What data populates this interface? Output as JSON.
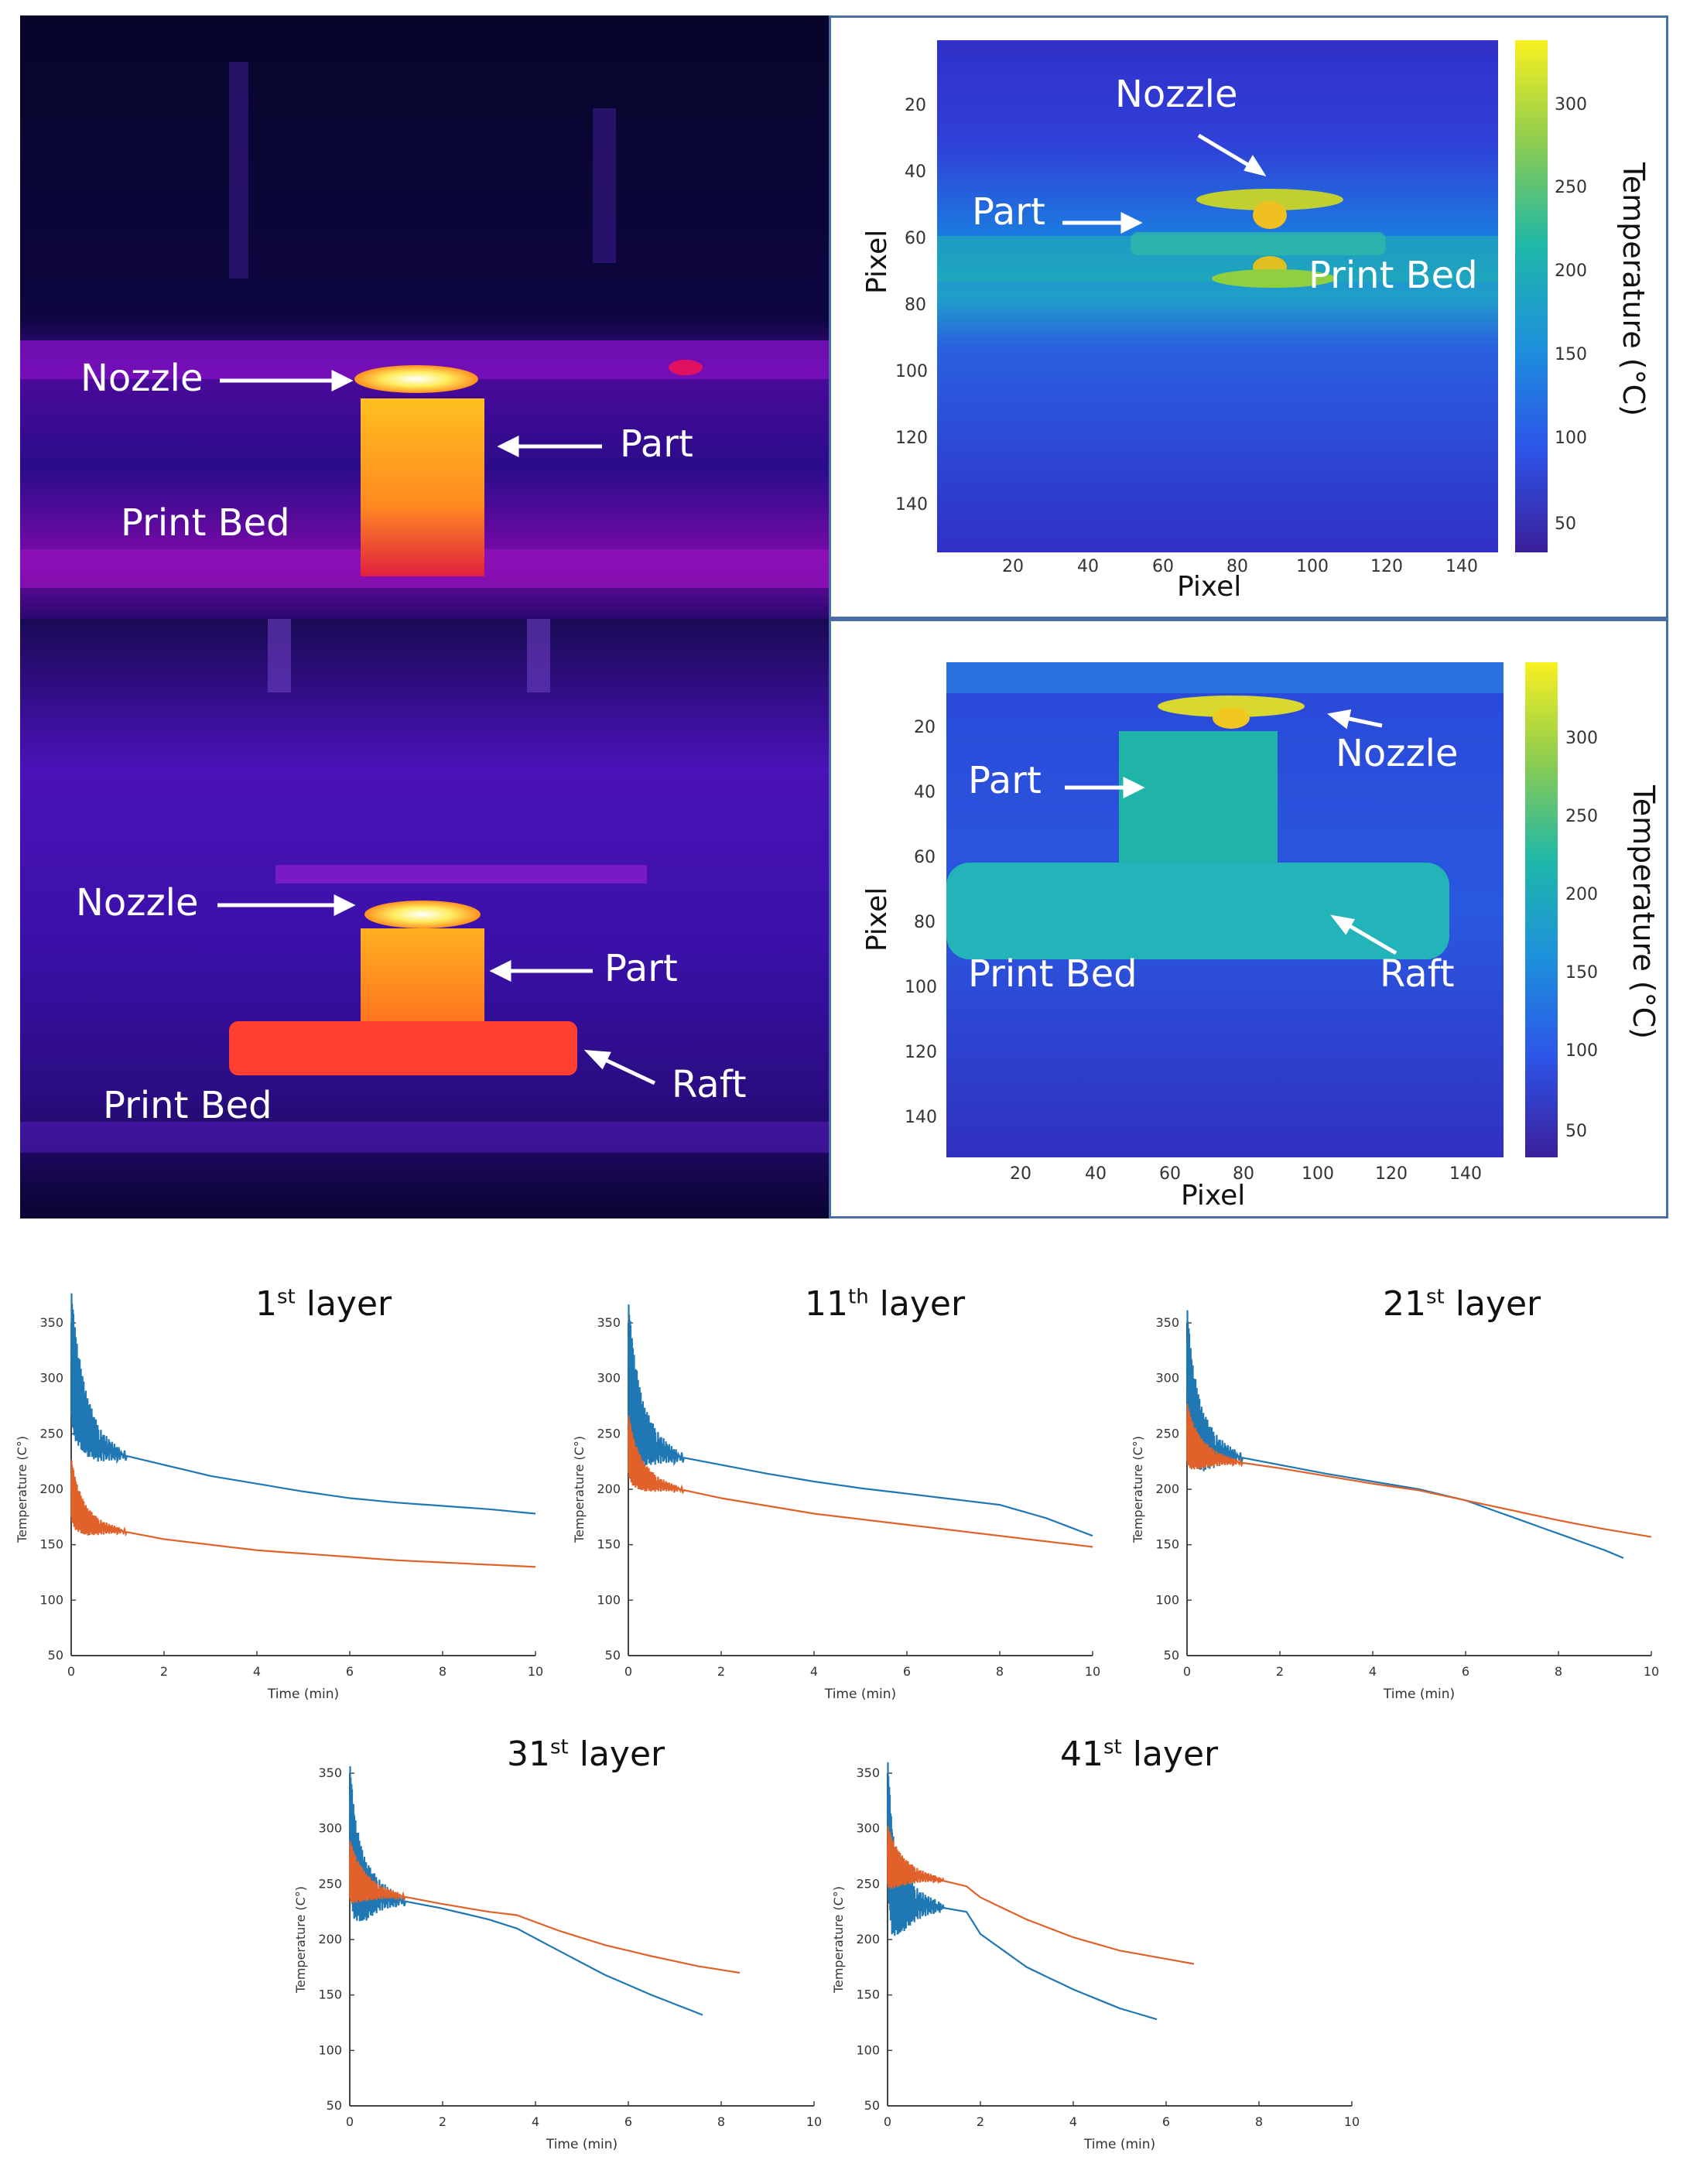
{
  "photo_top": {
    "labels": {
      "nozzle": "Nozzle",
      "part": "Part",
      "print_bed": "Print Bed"
    }
  },
  "photo_bottom": {
    "labels": {
      "nozzle": "Nozzle",
      "part": "Part",
      "raft": "Raft",
      "print_bed": "Print Bed"
    }
  },
  "map_top": {
    "labels": {
      "nozzle": "Nozzle",
      "part": "Part",
      "print_bed": "Print Bed"
    },
    "xlabel": "Pixel",
    "ylabel": "Pixel",
    "xticks": [
      "20",
      "40",
      "60",
      "80",
      "100",
      "120",
      "140"
    ],
    "yticks": [
      "20",
      "40",
      "60",
      "80",
      "100",
      "120",
      "140"
    ],
    "colorbar_label": "Temperature (°C)",
    "colorbar_ticks": [
      "300",
      "250",
      "200",
      "150",
      "100",
      "50"
    ]
  },
  "map_bottom": {
    "labels": {
      "nozzle": "Nozzle",
      "part": "Part",
      "raft": "Raft",
      "print_bed": "Print Bed"
    },
    "xlabel": "Pixel",
    "ylabel": "Pixel",
    "xticks": [
      "20",
      "40",
      "60",
      "80",
      "100",
      "120",
      "140"
    ],
    "yticks": [
      "20",
      "40",
      "60",
      "80",
      "100",
      "120",
      "140"
    ],
    "colorbar_label": "Temperature (°C)",
    "colorbar_ticks": [
      "300",
      "250",
      "200",
      "150",
      "100",
      "50"
    ]
  },
  "colors": {
    "series_a": "#1f77b4",
    "series_b": "#e0622a"
  },
  "chart_data": [
    {
      "type": "line",
      "title_num": "1",
      "title_sup": "st",
      "title_rest": " layer",
      "xlabel": "Time (min)",
      "ylabel": "Temperature (C°)",
      "xlim": [
        0,
        10
      ],
      "ylim": [
        50,
        350
      ],
      "xticks": [
        "0",
        "2",
        "4",
        "6",
        "8",
        "10"
      ],
      "yticks": [
        "50",
        "100",
        "150",
        "200",
        "250",
        "300",
        "350"
      ],
      "series": [
        {
          "name": "series_a",
          "x": [
            0,
            0.1,
            0.3,
            0.6,
            1,
            2,
            3,
            4,
            5,
            6,
            7,
            8,
            9,
            10
          ],
          "y": [
            320,
            290,
            260,
            240,
            232,
            222,
            212,
            205,
            198,
            192,
            188,
            185,
            182,
            178
          ]
        },
        {
          "name": "series_b",
          "x": [
            0,
            0.1,
            0.3,
            0.6,
            1,
            2,
            3,
            4,
            5,
            6,
            7,
            8,
            9,
            10
          ],
          "y": [
            200,
            185,
            172,
            166,
            163,
            155,
            150,
            145,
            142,
            139,
            136,
            134,
            132,
            130
          ]
        }
      ]
    },
    {
      "type": "line",
      "title_num": "11",
      "title_sup": "th",
      "title_rest": " layer",
      "xlabel": "Time (min)",
      "ylabel": "Temperature (C°)",
      "xlim": [
        0,
        10
      ],
      "ylim": [
        50,
        350
      ],
      "xticks": [
        "0",
        "2",
        "4",
        "6",
        "8",
        "10"
      ],
      "yticks": [
        "50",
        "100",
        "150",
        "200",
        "250",
        "300",
        "350"
      ],
      "series": [
        {
          "name": "series_a",
          "x": [
            0,
            0.1,
            0.3,
            0.6,
            1,
            2,
            3,
            4,
            5,
            6,
            7,
            8,
            9,
            10
          ],
          "y": [
            310,
            280,
            250,
            238,
            230,
            222,
            214,
            207,
            201,
            196,
            191,
            186,
            174,
            158
          ]
        },
        {
          "name": "series_b",
          "x": [
            0,
            0.1,
            0.3,
            0.6,
            1,
            2,
            3,
            4,
            5,
            6,
            7,
            8,
            9,
            10
          ],
          "y": [
            240,
            225,
            212,
            205,
            201,
            192,
            185,
            178,
            173,
            168,
            163,
            158,
            153,
            148
          ]
        }
      ]
    },
    {
      "type": "line",
      "title_num": "21",
      "title_sup": "st",
      "title_rest": " layer",
      "xlabel": "Time (min)",
      "ylabel": "Temperature (C°)",
      "xlim": [
        0,
        10
      ],
      "ylim": [
        50,
        350
      ],
      "xticks": [
        "0",
        "2",
        "4",
        "6",
        "8",
        "10"
      ],
      "yticks": [
        "50",
        "100",
        "150",
        "200",
        "250",
        "300",
        "350"
      ],
      "series": [
        {
          "name": "series_a",
          "x": [
            0,
            0.1,
            0.3,
            0.6,
            1,
            2,
            3,
            4,
            5,
            6,
            7,
            8,
            9,
            9.4
          ],
          "y": [
            305,
            270,
            245,
            235,
            230,
            222,
            214,
            207,
            200,
            190,
            175,
            160,
            145,
            138
          ]
        },
        {
          "name": "series_b",
          "x": [
            0,
            0.1,
            0.3,
            0.6,
            1,
            2,
            3,
            4,
            5,
            6,
            7,
            8,
            9,
            10
          ],
          "y": [
            250,
            240,
            232,
            228,
            225,
            219,
            212,
            205,
            199,
            190,
            181,
            172,
            164,
            157
          ]
        }
      ]
    },
    {
      "type": "line",
      "title_num": "31",
      "title_sup": "st",
      "title_rest": " layer",
      "xlabel": "Time (min)",
      "ylabel": "Temperature (C°)",
      "xlim": [
        0,
        10
      ],
      "ylim": [
        50,
        350
      ],
      "xticks": [
        "0",
        "2",
        "4",
        "6",
        "8",
        "10"
      ],
      "yticks": [
        "50",
        "100",
        "150",
        "200",
        "250",
        "300",
        "350"
      ],
      "series": [
        {
          "name": "series_a",
          "x": [
            0,
            0.1,
            0.3,
            0.6,
            1,
            2,
            3,
            3.6,
            4.5,
            5.5,
            6.5,
            7.6
          ],
          "y": [
            300,
            265,
            245,
            240,
            236,
            228,
            218,
            210,
            190,
            168,
            150,
            132
          ]
        },
        {
          "name": "series_b",
          "x": [
            0,
            0.1,
            0.3,
            0.6,
            1,
            2,
            3,
            3.6,
            4.5,
            5.5,
            6.5,
            7.5,
            8.4
          ],
          "y": [
            262,
            255,
            248,
            243,
            240,
            232,
            225,
            222,
            208,
            195,
            185,
            176,
            170
          ]
        }
      ]
    },
    {
      "type": "line",
      "title_num": "41",
      "title_sup": "st",
      "title_rest": " layer",
      "xlabel": "Time (min)",
      "ylabel": "Temperature (C°)",
      "xlim": [
        0,
        10
      ],
      "ylim": [
        50,
        350
      ],
      "xticks": [
        "0",
        "2",
        "4",
        "6",
        "8",
        "10"
      ],
      "yticks": [
        "50",
        "100",
        "150",
        "200",
        "250",
        "300",
        "350"
      ],
      "series": [
        {
          "name": "series_a",
          "x": [
            0,
            0.1,
            0.3,
            0.6,
            1,
            1.7,
            2,
            3,
            4,
            5,
            5.8
          ],
          "y": [
            305,
            250,
            235,
            232,
            230,
            225,
            205,
            175,
            155,
            138,
            128
          ]
        },
        {
          "name": "series_b",
          "x": [
            0,
            0.1,
            0.3,
            0.6,
            1,
            1.7,
            2,
            3,
            4,
            5,
            6.6
          ],
          "y": [
            275,
            268,
            262,
            258,
            255,
            248,
            238,
            218,
            202,
            190,
            178
          ]
        }
      ]
    }
  ]
}
